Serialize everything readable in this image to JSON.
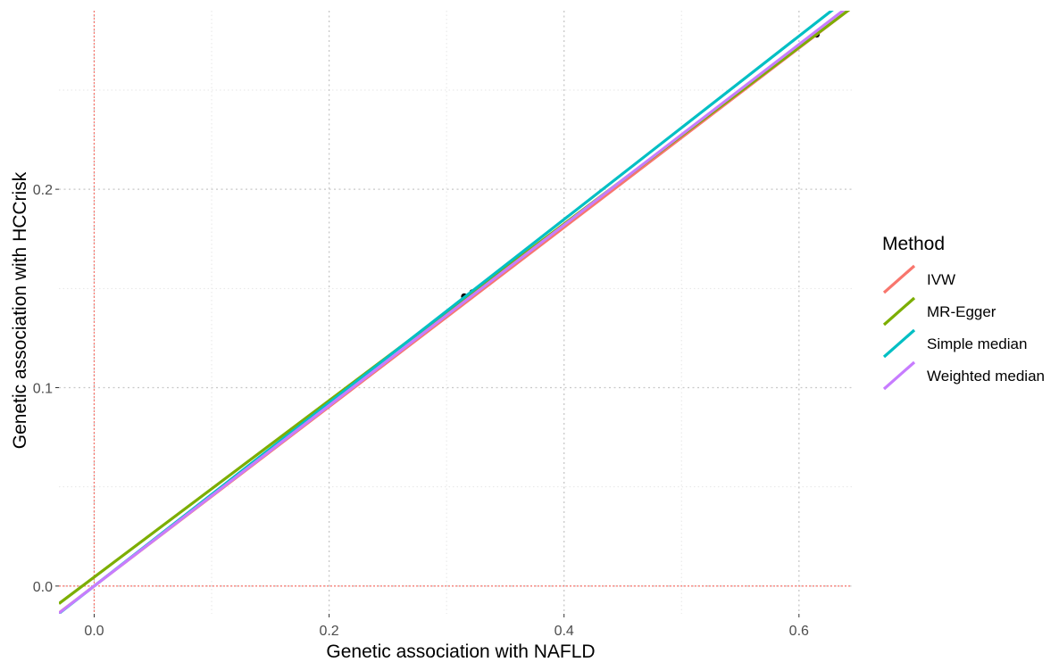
{
  "chart_data": {
    "type": "scatter",
    "title": "",
    "xlabel": "Genetic association with NAFLD",
    "ylabel": "Genetic association with HCCrisk",
    "xlim": [
      -0.03,
      0.645
    ],
    "ylim": [
      -0.014,
      0.29
    ],
    "x_ticks": [
      0.0,
      0.2,
      0.4,
      0.6
    ],
    "y_ticks": [
      0.0,
      0.1,
      0.2
    ],
    "x_tick_labels": [
      "0.0",
      "0.2",
      "0.4",
      "0.6"
    ],
    "y_tick_labels": [
      "0.0",
      "0.1",
      "0.2"
    ],
    "grid": true,
    "reference_lines": {
      "x": 0,
      "y": 0,
      "color": "#F8766D"
    },
    "points": [
      {
        "x": 0.315,
        "y": 0.146
      },
      {
        "x": 0.322,
        "y": 0.148
      },
      {
        "x": 0.615,
        "y": 0.278
      }
    ],
    "series": [
      {
        "name": "IVW",
        "color": "#F8766D",
        "slope": 0.452,
        "intercept": 0.0
      },
      {
        "name": "MR-Egger",
        "color": "#7CAE00",
        "slope": 0.445,
        "intercept": 0.0045
      },
      {
        "name": "Simple median",
        "color": "#00BFC4",
        "slope": 0.462,
        "intercept": 0.0
      },
      {
        "name": "Weighted median",
        "color": "#C77CFF",
        "slope": 0.455,
        "intercept": 0.0
      }
    ],
    "legend": {
      "title": "Method",
      "position": "right"
    }
  }
}
